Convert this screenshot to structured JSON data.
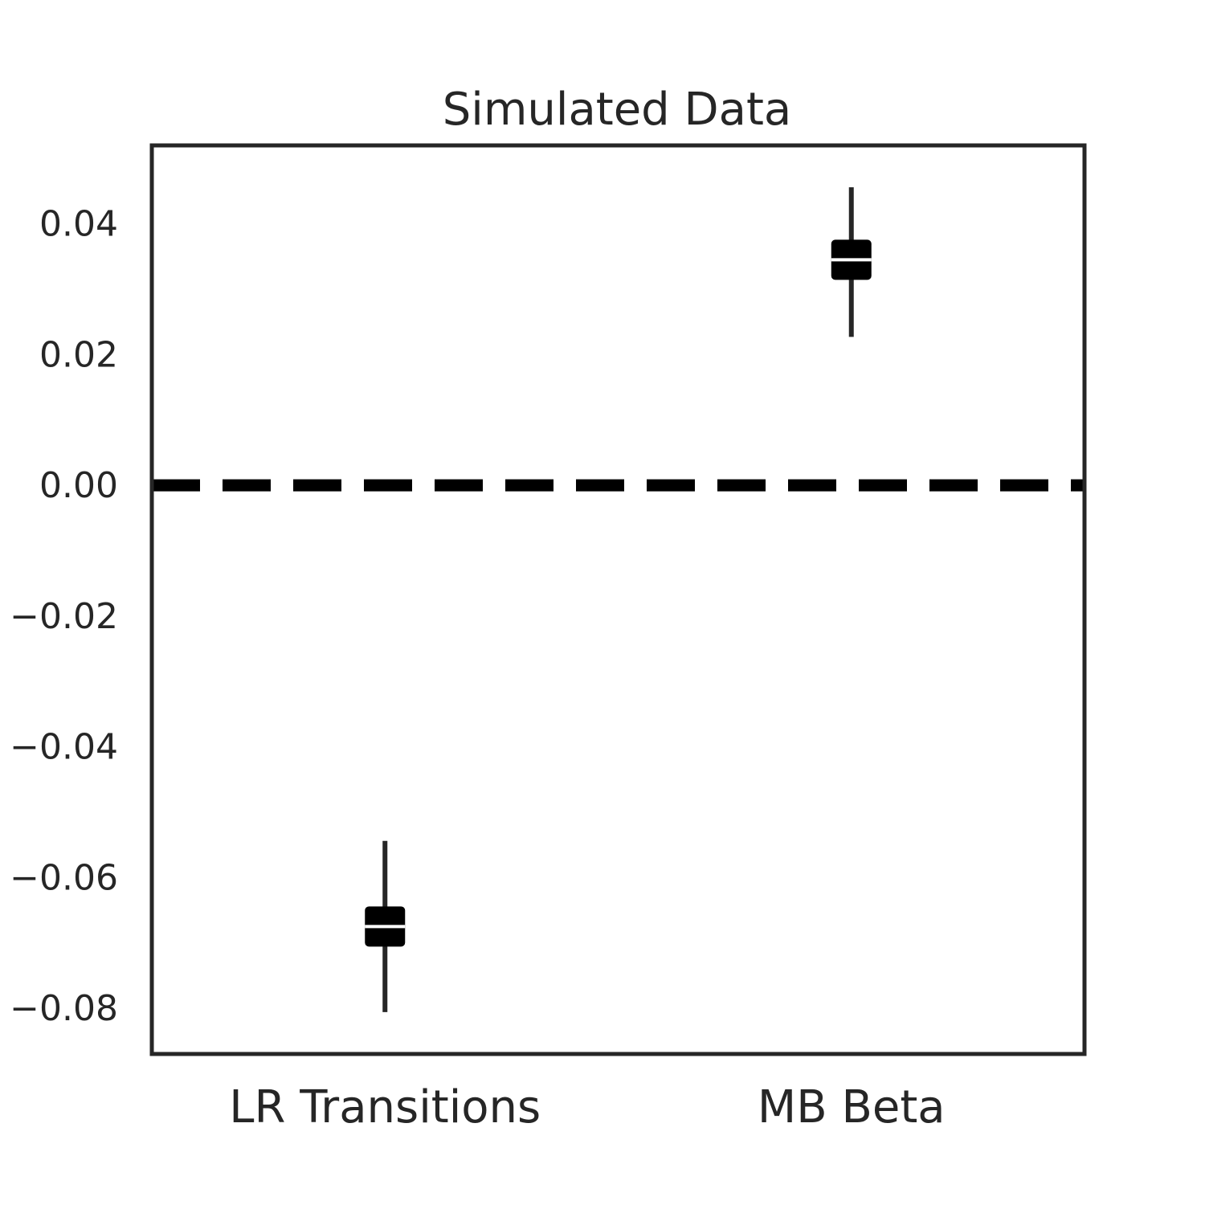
{
  "chart_data": {
    "type": "scatter",
    "title": "Simulated Data",
    "xlabel": "",
    "ylabel": "",
    "categories": [
      "LR Transitions",
      "MB Beta"
    ],
    "points": [
      {
        "category": "LR Transitions",
        "value": -0.0675,
        "ci_low": -0.0806,
        "ci_high": -0.0544
      },
      {
        "category": "MB Beta",
        "value": 0.0345,
        "ci_low": 0.0227,
        "ci_high": 0.0456
      }
    ],
    "ylim": [
      -0.087,
      0.052
    ],
    "yticks": [
      -0.08,
      -0.06,
      -0.04,
      -0.02,
      0.0,
      0.02,
      0.04
    ],
    "ytick_labels": [
      "−0.08",
      "−0.06",
      "−0.04",
      "−0.02",
      "0.00",
      "0.02",
      "0.04"
    ],
    "reference_line": {
      "value": 0.0,
      "style": "dashed"
    },
    "grid": false,
    "legend": "none",
    "colors": {
      "marker": "#000000",
      "errorbar": "#262626",
      "frame": "#262626",
      "text": "#262626"
    }
  }
}
